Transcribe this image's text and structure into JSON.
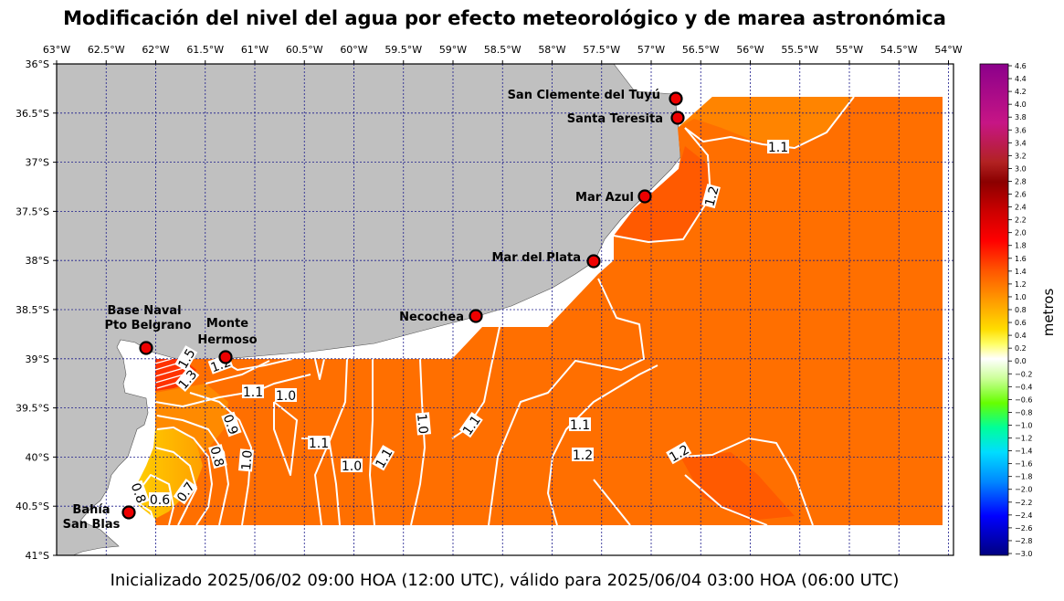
{
  "title": "Modificación del nivel del agua por efecto meteorológico y de marea astronómica",
  "footer": "Inicializado 2025/06/02 09:00 HOA (12:00 UTC), válido para 2025/06/04 03:00 HOA (06:00 UTC)",
  "lon_ticks": [
    "63°W",
    "62.5°W",
    "62°W",
    "61.5°W",
    "61°W",
    "60.5°W",
    "60°W",
    "59.5°W",
    "59°W",
    "58.5°W",
    "58°W",
    "57.5°W",
    "57°W",
    "56.5°W",
    "56°W",
    "55.5°W",
    "55°W",
    "54.5°W",
    "54°W"
  ],
  "lat_ticks": [
    "36°S",
    "36.5°S",
    "37°S",
    "37.5°S",
    "38°S",
    "38.5°S",
    "39°S",
    "39.5°S",
    "40°S",
    "40.5°S",
    "41°S"
  ],
  "colorbar": {
    "label": "metros",
    "ticks": [
      "4.6",
      "4.4",
      "4.2",
      "4.0",
      "3.8",
      "3.6",
      "3.4",
      "3.2",
      "3.0",
      "2.8",
      "2.6",
      "2.4",
      "2.2",
      "2.0",
      "1.8",
      "1.6",
      "1.4",
      "1.2",
      "1.0",
      "0.8",
      "0.6",
      "0.4",
      "0.2",
      "0.0",
      "−0.2",
      "−0.4",
      "−0.6",
      "−0.8",
      "−1.0",
      "−1.2",
      "−1.4",
      "−1.6",
      "−1.8",
      "−2.0",
      "−2.2",
      "−2.4",
      "−2.6",
      "−2.8",
      "−3.0"
    ],
    "colors": {
      "max": "#8b008b",
      "high": "#c71585",
      "dark_red": "#8b0000",
      "red": "#ff0000",
      "orange": "#ff8c00",
      "yellow": "#ffff00",
      "white": "#ffffff",
      "green": "#00ff00",
      "cyan": "#00bfff",
      "blue": "#0000ff",
      "min": "#000080"
    }
  },
  "stations": [
    {
      "name": "San Clemente del Tuyú",
      "lon": -56.7,
      "lat": -36.35
    },
    {
      "name": "Santa Teresita",
      "lon": -56.7,
      "lat": -36.55
    },
    {
      "name": "Mar Azul",
      "lon": -57.0,
      "lat": -37.35
    },
    {
      "name": "Mar del Plata",
      "lon": -57.55,
      "lat": -38.0
    },
    {
      "name": "Necochea",
      "lon": -58.75,
      "lat": -38.55
    },
    {
      "name": "Monte Hermoso",
      "lon": -61.3,
      "lat": -39.0
    },
    {
      "name": "Base Naval Pto Belgrano",
      "lon": -62.1,
      "lat": -38.9
    },
    {
      "name": "Bahía San Blas",
      "lon": -62.3,
      "lat": -40.55
    }
  ],
  "contour_labels": [
    "1.1",
    "1.2",
    "1.5",
    "1.3",
    "1.2",
    "1.1",
    "1.0",
    "0.9",
    "0.8",
    "1.0",
    "1.1",
    "1.0",
    "1.1",
    "1.0",
    "1.1",
    "1.1",
    "1.2",
    "1.2",
    "0.8",
    "0.6",
    "0.7"
  ],
  "colors": {
    "land": "#c0c0c0",
    "field": "#ff6f00",
    "field_light": "#ff8400",
    "field_dark": "#ff5a00",
    "grid": "#00008b",
    "station": "#ee0000"
  }
}
